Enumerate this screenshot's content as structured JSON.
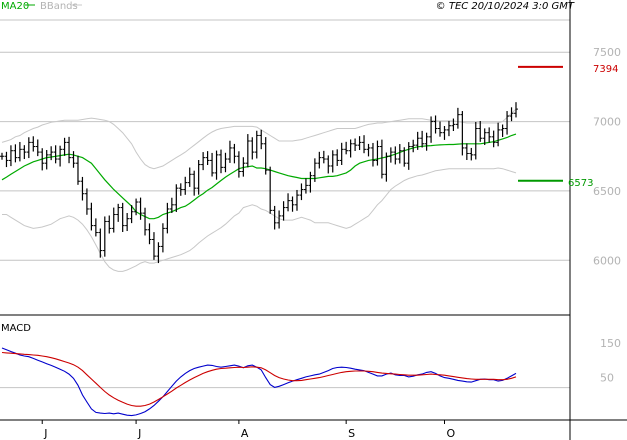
{
  "header": {
    "legend_ma": "MA20",
    "legend_bbands": "BBands",
    "copyright": "© TEC 20/10/2024 3:0 GMT"
  },
  "macd_panel": {
    "label": "MACD"
  },
  "levels": {
    "resistance": {
      "label": "7394",
      "value": 7394
    },
    "support": {
      "label": "6573",
      "value": 6573
    }
  },
  "colors": {
    "price": "#000000",
    "ma20": "#00aa00",
    "bbands": "#c8c8c8",
    "grid": "#c4c4c4",
    "macd": "#0000cc",
    "signal": "#cc0000",
    "resistance": "#cc0000",
    "support": "#009900"
  },
  "chart_data": [
    {
      "type": "ohlc",
      "name": "price",
      "ylim": [
        5620,
        7790
      ],
      "yticks": [
        {
          "value": 6000,
          "label": "6000"
        },
        {
          "value": 6500,
          "label": "6500"
        },
        {
          "value": 7000,
          "label": "7000"
        },
        {
          "value": 7500,
          "label": "7500"
        }
      ],
      "xticks": [
        {
          "index": 9,
          "label": "J"
        },
        {
          "index": 30,
          "label": "J"
        },
        {
          "index": 53,
          "label": "A"
        },
        {
          "index": 77,
          "label": "S"
        },
        {
          "index": 99,
          "label": "O"
        }
      ],
      "x_count": 116,
      "close": [
        6750,
        6720,
        6790,
        6740,
        6800,
        6780,
        6850,
        6820,
        6780,
        6700,
        6760,
        6780,
        6730,
        6800,
        6850,
        6740,
        6700,
        6570,
        6480,
        6370,
        6250,
        6200,
        6070,
        6280,
        6230,
        6330,
        6380,
        6250,
        6300,
        6350,
        6420,
        6340,
        6220,
        6150,
        6030,
        6100,
        6230,
        6370,
        6400,
        6520,
        6510,
        6560,
        6620,
        6520,
        6690,
        6740,
        6720,
        6630,
        6760,
        6670,
        6730,
        6810,
        6750,
        6640,
        6700,
        6860,
        6780,
        6900,
        6840,
        6650,
        6360,
        6270,
        6320,
        6380,
        6430,
        6400,
        6470,
        6510,
        6540,
        6610,
        6700,
        6740,
        6730,
        6680,
        6760,
        6720,
        6800,
        6790,
        6840,
        6830,
        6850,
        6800,
        6810,
        6720,
        6820,
        6620,
        6750,
        6780,
        6730,
        6790,
        6700,
        6820,
        6830,
        6880,
        6840,
        6890,
        7000,
        6950,
        6920,
        6940,
        6970,
        6980,
        7050,
        6810,
        6770,
        6760,
        6950,
        6880,
        6920,
        6890,
        6850,
        6940,
        6950,
        7040,
        7060,
        7090
      ],
      "ma20": [
        6580,
        6600,
        6620,
        6640,
        6660,
        6680,
        6695,
        6710,
        6720,
        6730,
        6740,
        6745,
        6750,
        6755,
        6760,
        6765,
        6760,
        6750,
        6740,
        6720,
        6700,
        6660,
        6620,
        6580,
        6545,
        6510,
        6480,
        6450,
        6420,
        6390,
        6350,
        6330,
        6315,
        6300,
        6300,
        6310,
        6330,
        6340,
        6350,
        6365,
        6380,
        6390,
        6410,
        6435,
        6460,
        6480,
        6505,
        6525,
        6550,
        6575,
        6600,
        6620,
        6640,
        6660,
        6670,
        6675,
        6680,
        6665,
        6665,
        6660,
        6650,
        6640,
        6630,
        6620,
        6610,
        6603,
        6597,
        6590,
        6590,
        6590,
        6590,
        6595,
        6600,
        6605,
        6605,
        6610,
        6620,
        6630,
        6650,
        6680,
        6700,
        6710,
        6720,
        6725,
        6730,
        6738,
        6745,
        6755,
        6765,
        6778,
        6790,
        6800,
        6810,
        6818,
        6822,
        6825,
        6827,
        6830,
        6832,
        6833,
        6835,
        6835,
        6838,
        6840,
        6840,
        6840,
        6840,
        6840,
        6845,
        6850,
        6855,
        6865,
        6875,
        6885,
        6900,
        6910
      ],
      "bb_upper": [
        6850,
        6860,
        6870,
        6890,
        6900,
        6920,
        6935,
        6950,
        6960,
        6975,
        6985,
        6995,
        7000,
        7005,
        7010,
        7010,
        7010,
        7010,
        7015,
        7020,
        7025,
        7020,
        7015,
        7010,
        7000,
        6980,
        6950,
        6920,
        6880,
        6840,
        6780,
        6730,
        6690,
        6670,
        6660,
        6670,
        6680,
        6700,
        6720,
        6740,
        6760,
        6780,
        6805,
        6830,
        6855,
        6880,
        6905,
        6925,
        6940,
        6950,
        6955,
        6960,
        6965,
        6965,
        6965,
        6965,
        6965,
        6960,
        6940,
        6920,
        6900,
        6880,
        6860,
        6860,
        6860,
        6860,
        6865,
        6870,
        6880,
        6890,
        6900,
        6910,
        6920,
        6930,
        6940,
        6950,
        6950,
        6950,
        6950,
        6950,
        6960,
        6970,
        6980,
        6985,
        6990,
        6990,
        6995,
        7000,
        7005,
        7010,
        7015,
        7020,
        7020,
        7020,
        7020,
        7015,
        7010,
        7005,
        7005,
        7005,
        7005,
        7005,
        7000,
        6995,
        6990,
        6990,
        6990,
        6990,
        6990,
        6990,
        6990,
        6990,
        7000,
        7030,
        7060,
        7090
      ],
      "bb_lower": [
        6330,
        6330,
        6310,
        6290,
        6270,
        6250,
        6240,
        6230,
        6235,
        6240,
        6250,
        6260,
        6280,
        6300,
        6310,
        6320,
        6310,
        6290,
        6260,
        6220,
        6170,
        6110,
        6050,
        5990,
        5950,
        5930,
        5920,
        5920,
        5930,
        5945,
        5960,
        5980,
        5990,
        5980,
        5980,
        5990,
        6000,
        6010,
        6020,
        6030,
        6040,
        6055,
        6070,
        6095,
        6125,
        6150,
        6175,
        6195,
        6215,
        6235,
        6260,
        6290,
        6320,
        6340,
        6380,
        6390,
        6400,
        6390,
        6370,
        6360,
        6340,
        6320,
        6300,
        6290,
        6290,
        6290,
        6300,
        6310,
        6300,
        6290,
        6270,
        6270,
        6270,
        6270,
        6260,
        6250,
        6240,
        6230,
        6240,
        6260,
        6280,
        6300,
        6320,
        6360,
        6400,
        6430,
        6470,
        6510,
        6535,
        6555,
        6575,
        6590,
        6600,
        6610,
        6615,
        6625,
        6635,
        6645,
        6650,
        6655,
        6660,
        6660,
        6660,
        6660,
        6660,
        6660,
        6660,
        6660,
        6660,
        6660,
        6660,
        6665,
        6660,
        6650,
        6640,
        6630
      ]
    },
    {
      "type": "line",
      "name": "MACD",
      "ylim": [
        -66,
        224
      ],
      "yticks": [
        {
          "value": 150,
          "label": "150"
        },
        {
          "value": 50,
          "label": "50"
        }
      ],
      "series": [
        {
          "name": "MACD",
          "values": [
            135,
            130,
            125,
            120,
            115,
            112,
            110,
            105,
            100,
            95,
            90,
            85,
            80,
            74,
            68,
            60,
            48,
            28,
            0,
            -20,
            -40,
            -50,
            -52,
            -53,
            -52,
            -54,
            -52,
            -55,
            -58,
            -59,
            -57,
            -53,
            -48,
            -40,
            -30,
            -18,
            -5,
            10,
            25,
            40,
            52,
            62,
            70,
            76,
            80,
            83,
            86,
            85,
            82,
            80,
            82,
            84,
            86,
            83,
            78,
            84,
            86,
            80,
            72,
            50,
            30,
            22,
            25,
            30,
            35,
            40,
            44,
            48,
            52,
            55,
            58,
            60,
            65,
            70,
            76,
            79,
            80,
            79,
            77,
            74,
            72,
            70,
            65,
            60,
            55,
            55,
            60,
            63,
            58,
            56,
            56,
            52,
            54,
            58,
            60,
            65,
            67,
            62,
            55,
            50,
            48,
            45,
            42,
            40,
            38,
            37,
            41,
            45,
            46,
            44,
            44,
            40,
            42,
            48,
            55,
            62
          ]
        },
        {
          "name": "Signal",
          "values": [
            122,
            121,
            120,
            119,
            118,
            117,
            116,
            115,
            114,
            112,
            110,
            107,
            104,
            100,
            96,
            92,
            87,
            80,
            70,
            58,
            46,
            34,
            22,
            10,
            0,
            -8,
            -15,
            -21,
            -26,
            -30,
            -32,
            -32,
            -30,
            -26,
            -20,
            -13,
            -5,
            3,
            11,
            20,
            28,
            36,
            43,
            50,
            56,
            62,
            67,
            71,
            74,
            76,
            77,
            78,
            79,
            80,
            79,
            80,
            81,
            80,
            78,
            72,
            64,
            56,
            50,
            46,
            43,
            41,
            41,
            42,
            44,
            46,
            48,
            50,
            53,
            56,
            59,
            62,
            65,
            67,
            68,
            69,
            69,
            69,
            68,
            67,
            65,
            63,
            62,
            61,
            60,
            59,
            58,
            57,
            57,
            57,
            58,
            59,
            60,
            59,
            58,
            57,
            55,
            53,
            51,
            49,
            47,
            46,
            45,
            45,
            45,
            45,
            45,
            44,
            44,
            45,
            48,
            52
          ]
        }
      ]
    }
  ]
}
